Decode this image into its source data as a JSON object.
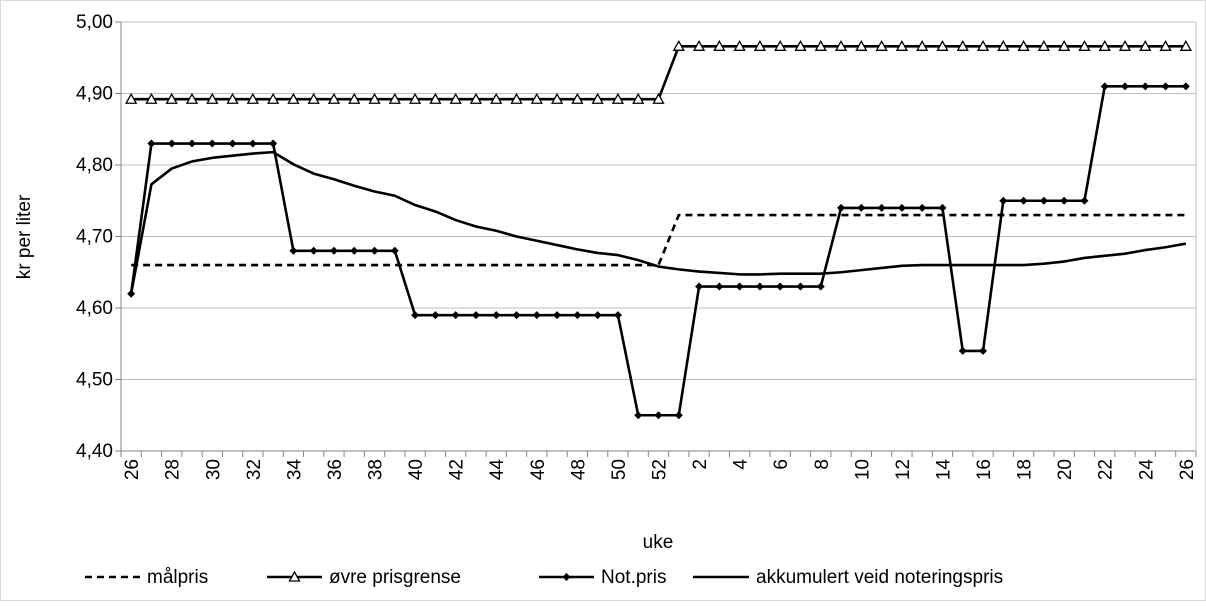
{
  "chart_data": {
    "type": "line",
    "ylabel": "kr per liter",
    "xlabel": "uke",
    "ylim": [
      4.4,
      5.0
    ],
    "y_ticks": [
      "4,40",
      "4,50",
      "4,60",
      "4,70",
      "4,80",
      "4,90",
      "5,00"
    ],
    "x_categories": [
      26,
      27,
      28,
      29,
      30,
      31,
      32,
      33,
      34,
      35,
      36,
      37,
      38,
      39,
      40,
      41,
      42,
      43,
      44,
      45,
      46,
      47,
      48,
      49,
      50,
      51,
      52,
      1,
      2,
      3,
      4,
      5,
      6,
      7,
      8,
      9,
      10,
      11,
      12,
      13,
      14,
      15,
      16,
      17,
      18,
      19,
      20,
      21,
      22,
      23,
      24,
      25,
      26
    ],
    "x_tick_labels": [
      "26",
      "28",
      "30",
      "32",
      "34",
      "36",
      "38",
      "40",
      "42",
      "44",
      "46",
      "48",
      "50",
      "52",
      "2",
      "4",
      "6",
      "8",
      "10",
      "12",
      "14",
      "16",
      "18",
      "20",
      "22",
      "24",
      "26"
    ],
    "grid": "horizontal",
    "legend_position": "bottom",
    "series": [
      {
        "name": "målpris",
        "style": "dashed",
        "color": "#000000",
        "values": [
          4.66,
          4.66,
          4.66,
          4.66,
          4.66,
          4.66,
          4.66,
          4.66,
          4.66,
          4.66,
          4.66,
          4.66,
          4.66,
          4.66,
          4.66,
          4.66,
          4.66,
          4.66,
          4.66,
          4.66,
          4.66,
          4.66,
          4.66,
          4.66,
          4.66,
          4.66,
          4.66,
          4.73,
          4.73,
          4.73,
          4.73,
          4.73,
          4.73,
          4.73,
          4.73,
          4.73,
          4.73,
          4.73,
          4.73,
          4.73,
          4.73,
          4.73,
          4.73,
          4.73,
          4.73,
          4.73,
          4.73,
          4.73,
          4.73,
          4.73,
          4.73,
          4.73,
          4.73
        ]
      },
      {
        "name": "øvre prisgrense",
        "style": "solid",
        "marker": "triangle-open",
        "color": "#000000",
        "values": [
          4.892,
          4.892,
          4.892,
          4.892,
          4.892,
          4.892,
          4.892,
          4.892,
          4.892,
          4.892,
          4.892,
          4.892,
          4.892,
          4.892,
          4.892,
          4.892,
          4.892,
          4.892,
          4.892,
          4.892,
          4.892,
          4.892,
          4.892,
          4.892,
          4.892,
          4.892,
          4.892,
          4.966,
          4.966,
          4.966,
          4.966,
          4.966,
          4.966,
          4.966,
          4.966,
          4.966,
          4.966,
          4.966,
          4.966,
          4.966,
          4.966,
          4.966,
          4.966,
          4.966,
          4.966,
          4.966,
          4.966,
          4.966,
          4.966,
          4.966,
          4.966,
          4.966,
          4.966
        ]
      },
      {
        "name": "Not.pris",
        "style": "solid",
        "marker": "diamond",
        "color": "#000000",
        "values": [
          4.62,
          4.83,
          4.83,
          4.83,
          4.83,
          4.83,
          4.83,
          4.83,
          4.68,
          4.68,
          4.68,
          4.68,
          4.68,
          4.68,
          4.59,
          4.59,
          4.59,
          4.59,
          4.59,
          4.59,
          4.59,
          4.59,
          4.59,
          4.59,
          4.59,
          4.45,
          4.45,
          4.45,
          4.63,
          4.63,
          4.63,
          4.63,
          4.63,
          4.63,
          4.63,
          4.74,
          4.74,
          4.74,
          4.74,
          4.74,
          4.74,
          4.54,
          4.54,
          4.75,
          4.75,
          4.75,
          4.75,
          4.75,
          4.91,
          4.91,
          4.91,
          4.91,
          4.91
        ]
      },
      {
        "name": "akkumulert veid noteringspris",
        "style": "solid",
        "color": "#000000",
        "values": [
          4.62,
          4.773,
          4.795,
          4.805,
          4.81,
          4.813,
          4.816,
          4.818,
          4.801,
          4.788,
          4.78,
          4.771,
          4.763,
          4.757,
          4.744,
          4.735,
          4.723,
          4.714,
          4.708,
          4.7,
          4.694,
          4.688,
          4.682,
          4.677,
          4.674,
          4.667,
          4.658,
          4.654,
          4.651,
          4.649,
          4.647,
          4.647,
          4.648,
          4.648,
          4.648,
          4.65,
          4.653,
          4.656,
          4.659,
          4.66,
          4.66,
          4.66,
          4.66,
          4.66,
          4.66,
          4.662,
          4.665,
          4.67,
          4.673,
          4.676,
          4.681,
          4.685,
          4.69
        ]
      }
    ]
  }
}
